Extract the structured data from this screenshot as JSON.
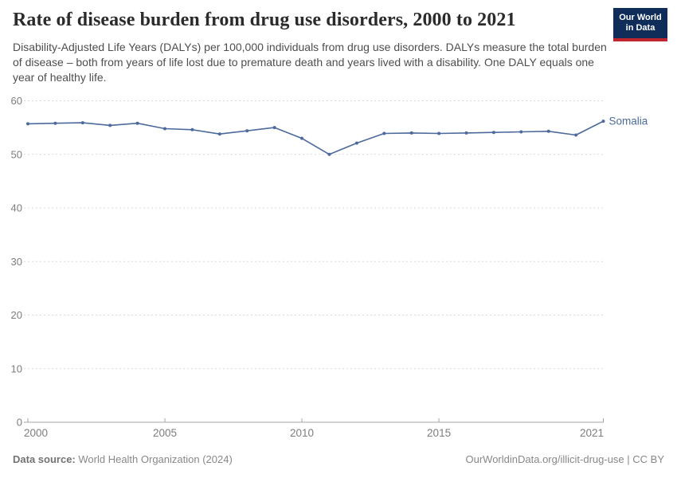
{
  "header": {
    "title": "Rate of disease burden from drug use disorders, 2000 to 2021",
    "subtitle": "Disability-Adjusted Life Years (DALYs) per 100,000 individuals from drug use disorders. DALYs measure the total burden of disease – both from years of life lost due to premature death and years lived with a disability. One DALY equals one year of healthy life.",
    "logo": {
      "line1": "Our World",
      "line2": "in Data",
      "bg_color": "#102d59",
      "stripe_color": "#c0262d"
    }
  },
  "chart_data": {
    "type": "line",
    "title": "Rate of disease burden from drug use disorders, 2000 to 2021",
    "xlabel": "",
    "ylabel": "",
    "x": [
      2000,
      2001,
      2002,
      2003,
      2004,
      2005,
      2006,
      2007,
      2008,
      2009,
      2010,
      2011,
      2012,
      2013,
      2014,
      2015,
      2016,
      2017,
      2018,
      2019,
      2020,
      2021
    ],
    "series": [
      {
        "name": "Somalia",
        "color": "#4c6a9c",
        "values": [
          55.7,
          55.8,
          55.9,
          55.4,
          55.8,
          54.8,
          54.6,
          53.8,
          54.4,
          55.0,
          53.0,
          50.0,
          52.1,
          53.9,
          54.0,
          53.9,
          54.0,
          54.1,
          54.2,
          54.3,
          53.6,
          56.2
        ]
      }
    ],
    "xlim": [
      2000,
      2021
    ],
    "ylim": [
      0,
      60
    ],
    "x_ticks": [
      2000,
      2005,
      2010,
      2015,
      2021
    ],
    "y_ticks": [
      0,
      10,
      20,
      30,
      40,
      50,
      60
    ],
    "grid": "horizontal-dashed",
    "legend_position": "line-end-label"
  },
  "footer": {
    "datasource_label": "Data source:",
    "datasource_value": "World Health Organization (2024)",
    "credit": "OurWorldinData.org/illicit-drug-use | CC BY"
  },
  "colors": {
    "accent": "#4c6a9c",
    "grid": "#d9d9d9",
    "axis": "#a5a5a5",
    "tick_text": "#7d7d7d",
    "title_text": "#2b2b2b",
    "subtitle_text": "#4e4e4e"
  }
}
